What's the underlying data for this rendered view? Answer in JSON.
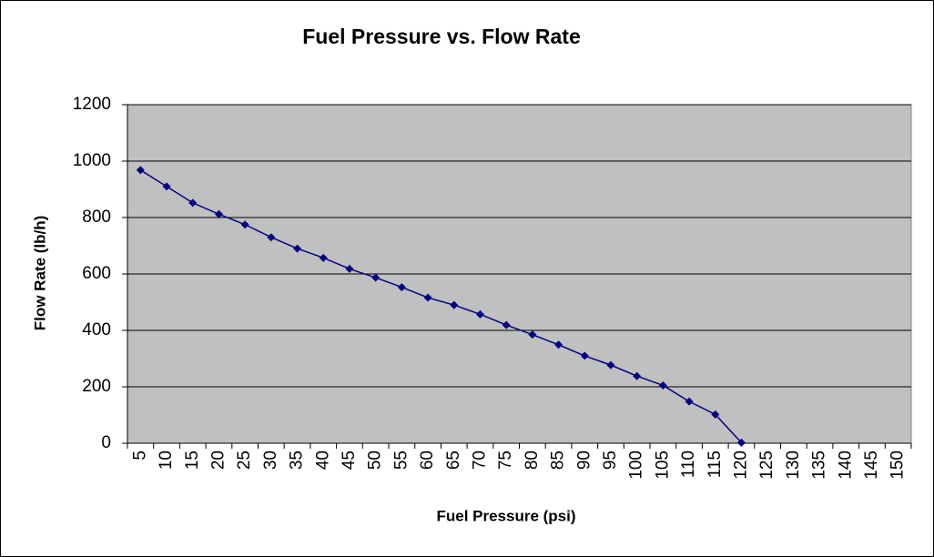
{
  "chart_data": {
    "type": "line",
    "title": "Fuel Pressure vs. Flow Rate",
    "x_label": "Fuel Pressure (psi)",
    "y_label": "Flow Rate (lb/h)",
    "categories": [
      "5",
      "10",
      "15",
      "20",
      "25",
      "30",
      "35",
      "40",
      "45",
      "50",
      "55",
      "60",
      "65",
      "70",
      "75",
      "80",
      "85",
      "90",
      "95",
      "100",
      "105",
      "110",
      "115",
      "120",
      "125",
      "130",
      "135",
      "140",
      "145",
      "150"
    ],
    "series": [
      {
        "name": "Flow Rate",
        "color": "#000080",
        "values": [
          968,
          910,
          852,
          812,
          775,
          730,
          690,
          657,
          618,
          587,
          553,
          516,
          490,
          457,
          419,
          385,
          349,
          310,
          277,
          238,
          205,
          148,
          102,
          2,
          null,
          null,
          null,
          null,
          null,
          null
        ]
      }
    ],
    "ylim": [
      0,
      1200
    ],
    "yticks": [
      0,
      200,
      400,
      600,
      800,
      1000,
      1200
    ],
    "grid": true,
    "plot_background": "#c0c0c0"
  }
}
